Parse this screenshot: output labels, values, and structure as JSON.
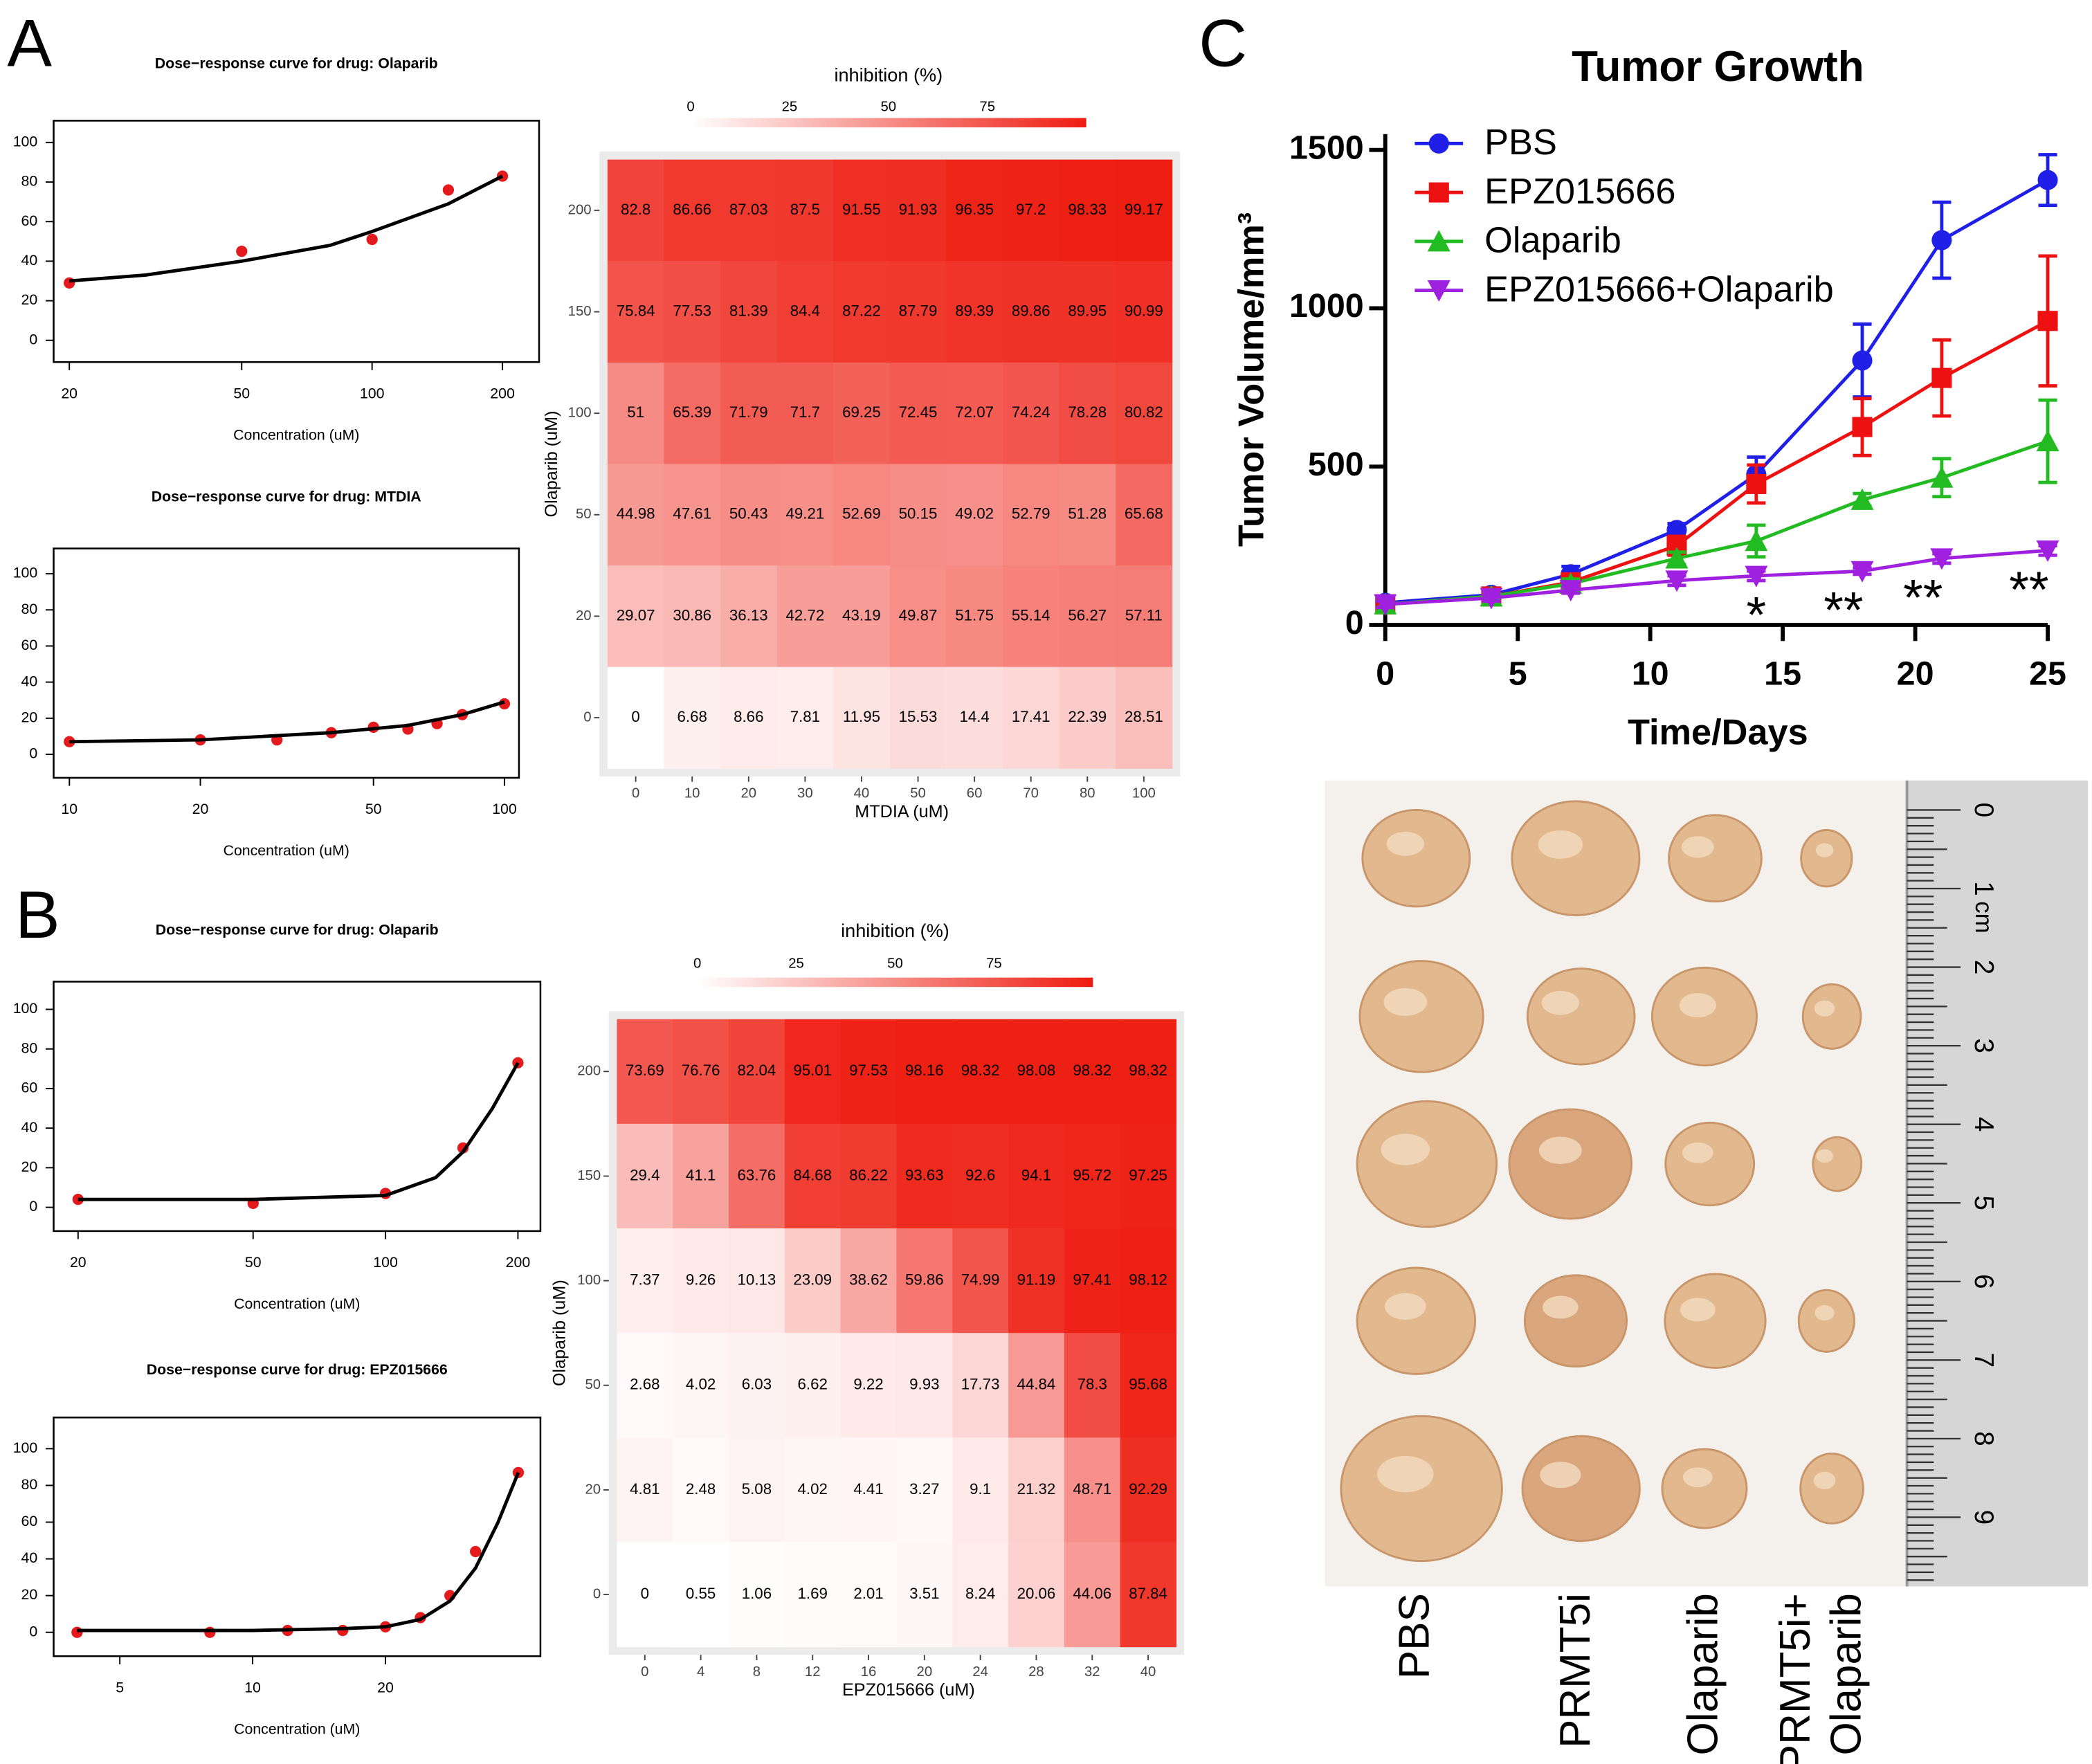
{
  "panel_labels": [
    "A",
    "B",
    "C"
  ],
  "chart_data": [
    {
      "type": "scatter",
      "title": "Dose−response curve for drug: Olaparib",
      "x_label": "Concentration (uM)",
      "log_x": true,
      "xlim": [
        18.4,
        243
      ],
      "ylim": [
        -11,
        111
      ],
      "xticks": [
        20,
        50,
        100,
        200
      ],
      "yticks": [
        0,
        20,
        40,
        60,
        80,
        100
      ],
      "series": [
        {
          "x": [
            20,
            50,
            100,
            150,
            200
          ],
          "values": [
            29,
            45,
            51,
            76,
            83
          ],
          "color": "#e41a1c"
        },
        {
          "x": [
            20,
            30,
            50,
            80,
            100,
            150,
            200
          ],
          "values": [
            30,
            33,
            40,
            48,
            55,
            69,
            83
          ],
          "color": "#000000",
          "line": true
        }
      ]
    },
    {
      "type": "heatmap",
      "colorbar_label": "inhibition (%)",
      "colorbar_ticks": [
        0,
        25,
        50,
        75
      ],
      "zlim": [
        0,
        100
      ],
      "colors": [
        "#ffffff",
        "#ee1c10"
      ],
      "x_label": "MTDIA (uM)",
      "y_label": "Olaparib (uM)",
      "x_categories": [
        0,
        10,
        20,
        30,
        40,
        50,
        60,
        70,
        80,
        100
      ],
      "y_categories": [
        200,
        150,
        100,
        50,
        20,
        0
      ],
      "values": [
        [
          82.8,
          86.66,
          87.03,
          87.5,
          91.55,
          91.93,
          96.35,
          97.2,
          98.33,
          99.17
        ],
        [
          75.84,
          77.53,
          81.39,
          84.4,
          87.22,
          87.79,
          89.39,
          89.86,
          89.95,
          90.99
        ],
        [
          51,
          65.39,
          71.79,
          71.7,
          69.25,
          72.45,
          72.07,
          74.24,
          78.28,
          80.82
        ],
        [
          44.98,
          47.61,
          50.43,
          49.21,
          52.69,
          50.15,
          49.02,
          52.79,
          51.28,
          65.68
        ],
        [
          29.07,
          30.86,
          36.13,
          42.72,
          43.19,
          49.87,
          51.75,
          55.14,
          56.27,
          57.11
        ],
        [
          0,
          6.68,
          8.66,
          7.81,
          11.95,
          15.53,
          14.4,
          17.41,
          22.39,
          28.51
        ]
      ]
    },
    {
      "type": "scatter",
      "title": "Dose−response curve for drug: MTDIA",
      "x_label": "Concentration (uM)",
      "log_x": true,
      "xlim": [
        9.2,
        108
      ],
      "ylim": [
        -13,
        114
      ],
      "xticks": [
        10,
        20,
        50,
        100
      ],
      "yticks": [
        0,
        20,
        40,
        60,
        80,
        100
      ],
      "series": [
        {
          "x": [
            10,
            20,
            30,
            40,
            50,
            60,
            70,
            80,
            100
          ],
          "values": [
            7,
            8,
            8,
            12,
            15,
            14,
            17,
            22,
            28
          ],
          "color": "#e41a1c"
        },
        {
          "x": [
            10,
            20,
            40,
            60,
            80,
            100
          ],
          "values": [
            7,
            8,
            12,
            16,
            22,
            29
          ],
          "color": "#000000",
          "line": true
        }
      ]
    },
    {
      "type": "scatter",
      "title": "Dose−response curve for drug: Olaparib",
      "x_label": "Concentration (uM)",
      "log_x": true,
      "xlim": [
        17.6,
        225
      ],
      "ylim": [
        -12,
        114
      ],
      "xticks": [
        20,
        50,
        100,
        200
      ],
      "yticks": [
        0,
        20,
        40,
        60,
        80,
        100
      ],
      "series": [
        {
          "x": [
            20,
            50,
            100,
            150,
            200
          ],
          "values": [
            4,
            2,
            7,
            30,
            73
          ],
          "color": "#e41a1c"
        },
        {
          "x": [
            20,
            50,
            100,
            130,
            150,
            175,
            200
          ],
          "values": [
            4,
            4,
            6,
            15,
            28,
            50,
            73
          ],
          "color": "#000000",
          "line": true
        }
      ]
    },
    {
      "type": "heatmap",
      "colorbar_label": "inhibition (%)",
      "colorbar_ticks": [
        0,
        25,
        50,
        75
      ],
      "zlim": [
        0,
        100
      ],
      "colors": [
        "#ffffff",
        "#ee1c10"
      ],
      "x_label": "EPZ015666 (uM)",
      "y_label": "Olaparib (uM)",
      "x_categories": [
        0,
        4,
        8,
        12,
        16,
        20,
        24,
        28,
        32,
        40
      ],
      "y_categories": [
        200,
        150,
        100,
        50,
        20,
        0
      ],
      "values": [
        [
          73.69,
          76.76,
          82.04,
          95.01,
          97.53,
          98.16,
          98.32,
          98.08,
          98.32,
          98.32
        ],
        [
          29.4,
          41.1,
          63.76,
          84.68,
          86.22,
          93.63,
          92.6,
          94.1,
          95.72,
          97.25
        ],
        [
          7.37,
          9.26,
          10.13,
          23.09,
          38.62,
          59.86,
          74.99,
          91.19,
          97.41,
          98.12
        ],
        [
          2.68,
          4.02,
          6.03,
          6.62,
          9.22,
          9.93,
          17.73,
          44.84,
          78.3,
          95.68
        ],
        [
          4.81,
          2.48,
          5.08,
          4.02,
          4.41,
          3.27,
          9.1,
          21.32,
          48.71,
          92.29
        ],
        [
          0,
          0.55,
          1.06,
          1.69,
          2.01,
          3.51,
          8.24,
          20.06,
          44.06,
          87.84
        ]
      ]
    },
    {
      "type": "scatter",
      "title": "Dose−response curve for drug: EPZ015666",
      "x_label": "Concentration (uM)",
      "log_x": true,
      "xlim": [
        3.54,
        44.9
      ],
      "ylim": [
        -13,
        117
      ],
      "xticks": [
        5,
        10,
        20
      ],
      "yticks": [
        0,
        20,
        40,
        60,
        80,
        100
      ],
      "series": [
        {
          "x": [
            4,
            8,
            12,
            16,
            20,
            24,
            28,
            32,
            40
          ],
          "values": [
            0,
            0,
            1,
            1,
            3,
            8,
            20,
            44,
            87
          ],
          "color": "#e41a1c"
        },
        {
          "x": [
            4,
            10,
            16,
            20,
            24,
            28,
            32,
            36,
            40
          ],
          "values": [
            1,
            1,
            2,
            3,
            7,
            17,
            35,
            60,
            87
          ],
          "color": "#000000",
          "line": true
        }
      ]
    },
    {
      "type": "line",
      "title": "Tumor Growth",
      "x_label": "Time/Days",
      "y_label": "Tumor Volume/mm³",
      "xlim": [
        0,
        25
      ],
      "ylim": [
        0,
        1550
      ],
      "xticks": [
        0,
        5,
        10,
        15,
        20,
        25
      ],
      "yticks": [
        0,
        500,
        1000,
        1500
      ],
      "legend": "top-left",
      "x": [
        0,
        4,
        7,
        11,
        14,
        18,
        21,
        25
      ],
      "series": [
        {
          "name": "PBS",
          "color": "#1f1fe8",
          "marker": "circle",
          "values": [
            70,
            95,
            160,
            300,
            475,
            835,
            1215,
            1405
          ],
          "errors": [
            20,
            15,
            25,
            20,
            55,
            115,
            120,
            80
          ]
        },
        {
          "name": "EPZ015666",
          "color": "#ee1111",
          "marker": "square",
          "values": [
            65,
            90,
            135,
            250,
            445,
            625,
            780,
            960
          ],
          "errors": [
            15,
            10,
            15,
            30,
            60,
            90,
            120,
            205
          ]
        },
        {
          "name": "Olaparib",
          "color": "#22bb22",
          "marker": "triangle-up",
          "values": [
            65,
            90,
            130,
            210,
            265,
            395,
            465,
            580
          ],
          "errors": [
            10,
            10,
            15,
            20,
            50,
            20,
            60,
            130
          ]
        },
        {
          "name": "EPZ015666+Olaparib",
          "color": "#a020e0",
          "marker": "triangle-down",
          "values": [
            65,
            85,
            110,
            140,
            155,
            170,
            210,
            235
          ],
          "errors": [
            10,
            10,
            10,
            15,
            15,
            10,
            15,
            15
          ]
        }
      ],
      "annotations": [
        {
          "text": "*",
          "x": 14
        },
        {
          "text": "**",
          "x": 18
        },
        {
          "text": "**",
          "x": 21
        },
        {
          "text": "**",
          "x": 25
        }
      ]
    }
  ],
  "photo": {
    "group_labels": [
      [
        "PBS"
      ],
      [
        "PRMT5i"
      ],
      [
        "Olaparib"
      ],
      [
        "PRMT5i+",
        "Olaparib"
      ]
    ],
    "ruler_labels": [
      "0",
      "1",
      "2",
      "3",
      "4",
      "5",
      "6",
      "7",
      "8",
      "9"
    ],
    "ruler_unit": "cm"
  }
}
